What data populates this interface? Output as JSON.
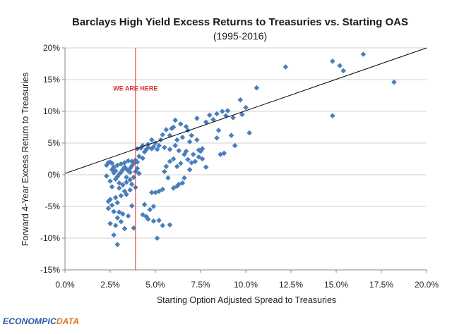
{
  "chart_data": {
    "type": "scatter",
    "title": "Barclays High Yield Excess Returns to Treasuries vs. Starting OAS",
    "subtitle": "(1995-2016)",
    "xlabel": "Starting Option Adjusted Spread to Treasuries",
    "ylabel": "Forward 4-Year Excess Return to Treasuries",
    "xlim": [
      0,
      20
    ],
    "ylim": [
      -15,
      20
    ],
    "x_ticks": [
      "0.0%",
      "2.5%",
      "5.0%",
      "7.5%",
      "10.0%",
      "12.5%",
      "15.0%",
      "17.5%",
      "20.0%"
    ],
    "y_ticks": [
      "20%",
      "15%",
      "10%",
      "5%",
      "0%",
      "-5%",
      "-10%",
      "-15%"
    ],
    "grid": "horizontal",
    "marker_color": "#4a7ebb",
    "trendline": {
      "x": [
        0,
        20
      ],
      "y": [
        0.2,
        20.0
      ],
      "color": "#000000"
    },
    "annotation": {
      "text": "WE ARE HERE",
      "x": 3.9,
      "color": "#e03030"
    },
    "points": [
      [
        16.5,
        19.0
      ],
      [
        14.8,
        17.9
      ],
      [
        15.2,
        17.2
      ],
      [
        15.4,
        16.4
      ],
      [
        12.2,
        17.0
      ],
      [
        18.2,
        14.6
      ],
      [
        14.8,
        9.3
      ],
      [
        10.6,
        13.7
      ],
      [
        9.7,
        11.8
      ],
      [
        10.0,
        10.6
      ],
      [
        10.2,
        6.6
      ],
      [
        9.8,
        9.5
      ],
      [
        9.0,
        10.1
      ],
      [
        8.7,
        10.0
      ],
      [
        8.4,
        9.6
      ],
      [
        8.9,
        9.3
      ],
      [
        9.3,
        9.0
      ],
      [
        8.0,
        9.4
      ],
      [
        7.8,
        8.3
      ],
      [
        7.3,
        8.9
      ],
      [
        8.2,
        8.7
      ],
      [
        8.5,
        7.0
      ],
      [
        8.4,
        5.8
      ],
      [
        9.2,
        6.2
      ],
      [
        9.4,
        4.6
      ],
      [
        8.8,
        3.4
      ],
      [
        8.6,
        3.2
      ],
      [
        7.8,
        1.2
      ],
      [
        7.6,
        2.5
      ],
      [
        7.5,
        3.7
      ],
      [
        7.3,
        5.5
      ],
      [
        7.0,
        6.2
      ],
      [
        6.8,
        7.0
      ],
      [
        6.7,
        7.6
      ],
      [
        6.4,
        8.0
      ],
      [
        6.1,
        8.6
      ],
      [
        6.0,
        7.5
      ],
      [
        5.9,
        7.3
      ],
      [
        5.8,
        6.2
      ],
      [
        5.6,
        7.1
      ],
      [
        5.4,
        6.3
      ],
      [
        5.3,
        5.5
      ],
      [
        5.2,
        4.6
      ],
      [
        5.1,
        4.0
      ],
      [
        4.9,
        4.4
      ],
      [
        4.8,
        4.1
      ],
      [
        4.6,
        4.3
      ],
      [
        4.5,
        4.0
      ],
      [
        4.3,
        4.6
      ],
      [
        4.2,
        4.2
      ],
      [
        4.0,
        4.1
      ],
      [
        4.4,
        3.6
      ],
      [
        4.6,
        4.8
      ],
      [
        4.8,
        5.5
      ],
      [
        5.0,
        5.0
      ],
      [
        5.5,
        4.3
      ],
      [
        5.8,
        4.0
      ],
      [
        6.1,
        4.6
      ],
      [
        6.3,
        3.8
      ],
      [
        6.2,
        5.5
      ],
      [
        6.5,
        5.9
      ],
      [
        6.6,
        3.2
      ],
      [
        6.8,
        2.4
      ],
      [
        7.0,
        1.9
      ],
      [
        7.2,
        2.1
      ],
      [
        7.4,
        3.9
      ],
      [
        7.6,
        4.1
      ],
      [
        7.1,
        3.2
      ],
      [
        6.9,
        5.2
      ],
      [
        6.7,
        3.7
      ],
      [
        6.4,
        1.8
      ],
      [
        6.2,
        1.3
      ],
      [
        6.0,
        2.5
      ],
      [
        5.8,
        2.1
      ],
      [
        5.6,
        1.3
      ],
      [
        5.5,
        0.5
      ],
      [
        5.7,
        -0.5
      ],
      [
        5.4,
        -2.3
      ],
      [
        5.2,
        -2.6
      ],
      [
        5.0,
        -2.8
      ],
      [
        4.8,
        -2.8
      ],
      [
        4.9,
        -5.0
      ],
      [
        4.7,
        -5.5
      ],
      [
        4.5,
        -6.6
      ],
      [
        4.3,
        -6.3
      ],
      [
        4.6,
        -7.0
      ],
      [
        4.9,
        -7.3
      ],
      [
        5.2,
        -7.2
      ],
      [
        5.4,
        -8.0
      ],
      [
        5.8,
        -7.9
      ],
      [
        5.1,
        -10.0
      ],
      [
        4.4,
        -4.7
      ],
      [
        6.3,
        -1.5
      ],
      [
        6.5,
        -1.3
      ],
      [
        6.2,
        -1.8
      ],
      [
        6.0,
        -2.1
      ],
      [
        6.6,
        -0.5
      ],
      [
        6.9,
        0.8
      ],
      [
        7.4,
        2.8
      ],
      [
        4.1,
        2.9
      ],
      [
        3.9,
        2.3
      ],
      [
        3.8,
        1.8
      ],
      [
        3.7,
        1.4
      ],
      [
        3.6,
        1.0
      ],
      [
        3.5,
        0.6
      ],
      [
        3.4,
        0.9
      ],
      [
        3.3,
        1.2
      ],
      [
        3.2,
        0.8
      ],
      [
        3.1,
        0.4
      ],
      [
        3.0,
        0.1
      ],
      [
        2.9,
        -0.3
      ],
      [
        2.8,
        0.6
      ],
      [
        2.7,
        1.2
      ],
      [
        2.6,
        1.8
      ],
      [
        2.5,
        2.0
      ],
      [
        2.4,
        1.9
      ],
      [
        2.3,
        1.5
      ],
      [
        2.6,
        0.8
      ],
      [
        2.8,
        -0.7
      ],
      [
        3.0,
        -1.3
      ],
      [
        3.2,
        -1.6
      ],
      [
        3.4,
        -1.2
      ],
      [
        3.6,
        -0.8
      ],
      [
        3.8,
        -0.4
      ],
      [
        3.9,
        0.5
      ],
      [
        4.0,
        1.0
      ],
      [
        4.0,
        2.0
      ],
      [
        3.3,
        1.9
      ],
      [
        3.5,
        2.2
      ],
      [
        3.7,
        2.1
      ],
      [
        3.1,
        1.7
      ],
      [
        2.9,
        1.5
      ],
      [
        2.7,
        0.3
      ],
      [
        2.5,
        -1.0
      ],
      [
        2.6,
        -1.9
      ],
      [
        3.0,
        -2.1
      ],
      [
        3.3,
        -2.6
      ],
      [
        3.6,
        -2.4
      ],
      [
        3.4,
        -3.1
      ],
      [
        3.1,
        -3.3
      ],
      [
        2.8,
        -3.6
      ],
      [
        2.5,
        -3.9
      ],
      [
        2.4,
        -4.2
      ],
      [
        2.6,
        -4.8
      ],
      [
        2.9,
        -4.4
      ],
      [
        2.4,
        -5.3
      ],
      [
        2.7,
        -5.8
      ],
      [
        3.0,
        -5.9
      ],
      [
        3.2,
        -6.2
      ],
      [
        3.5,
        -6.5
      ],
      [
        3.7,
        -4.9
      ],
      [
        2.9,
        -6.8
      ],
      [
        2.5,
        -7.7
      ],
      [
        2.8,
        -8.0
      ],
      [
        3.1,
        -7.4
      ],
      [
        3.3,
        -8.5
      ],
      [
        2.7,
        -9.5
      ],
      [
        2.9,
        -11.0
      ],
      [
        3.8,
        -8.4
      ],
      [
        3.9,
        -2.0
      ],
      [
        3.7,
        -1.5
      ],
      [
        4.3,
        2.6
      ],
      [
        4.1,
        0.2
      ],
      [
        3.4,
        -0.4
      ],
      [
        3.6,
        0.4
      ],
      [
        2.3,
        -0.2
      ]
    ]
  },
  "logo": {
    "part1": "ECONOMPIC",
    "part2": "DATA"
  }
}
